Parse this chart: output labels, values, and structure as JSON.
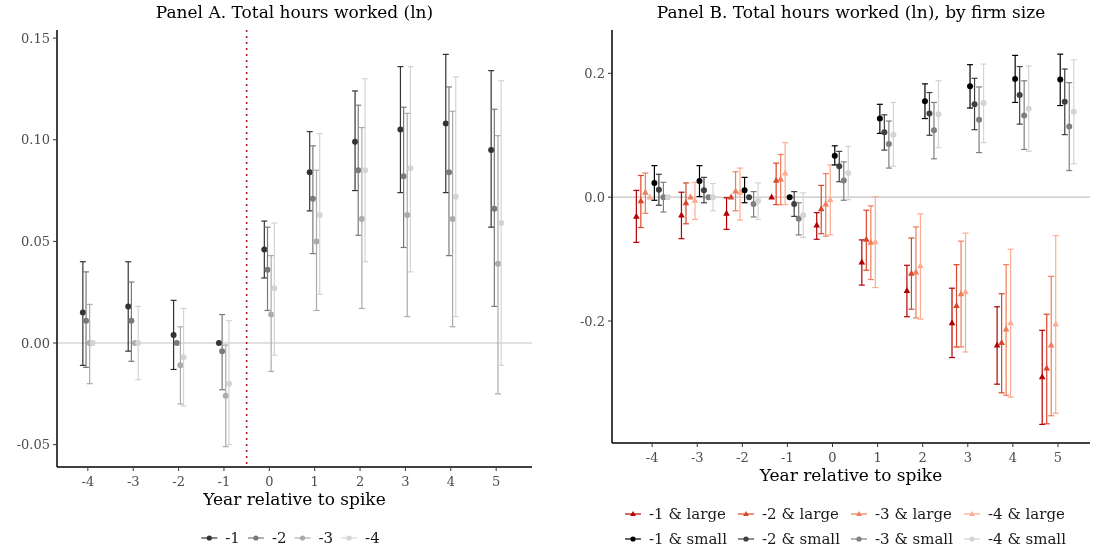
{
  "chart_data": [
    {
      "type": "scatter",
      "title": "Panel A. Total hours worked (ln)",
      "xlabel": "Year relative to spike",
      "xlim": [
        -4.68,
        5.79
      ],
      "xticks": [
        -4,
        -3,
        -2,
        -1,
        0,
        1,
        2,
        3,
        4,
        5
      ],
      "ylim": [
        -0.061,
        0.154
      ],
      "yticks": [
        {
          "value": -0.05,
          "label": "-0.05"
        },
        {
          "value": 0,
          "label": "0.00"
        },
        {
          "value": 0.05,
          "label": "0.05"
        },
        {
          "value": 0.1,
          "label": "0.10"
        },
        {
          "value": 0.15,
          "label": "0.15"
        }
      ],
      "legend": "bottom",
      "marker": "circle",
      "ref_lines": [
        {
          "axis": "y",
          "value": 0,
          "color": "#c4c4c4",
          "line_style": "solid"
        },
        {
          "axis": "x",
          "value": -0.5,
          "color": "#b2182b",
          "line_style": "dotted"
        }
      ],
      "series": [
        {
          "name": "-1",
          "color": "#333333",
          "x": [
            -4.11,
            -3.11,
            -2.11,
            -1.11,
            -0.11,
            0.89,
            1.89,
            2.89,
            3.89,
            4.89
          ],
          "values": [
            0.015,
            0.018,
            0.004,
            0,
            0.046,
            0.084,
            0.099,
            0.105,
            0.108,
            0.095
          ],
          "errors": [
            [
              -0.011,
              0.04
            ],
            [
              -0.004,
              0.04
            ],
            [
              -0.013,
              0.021
            ],
            null,
            [
              0.032,
              0.06
            ],
            [
              0.065,
              0.104
            ],
            [
              0.075,
              0.124
            ],
            [
              0.074,
              0.136
            ],
            [
              0.074,
              0.142
            ],
            [
              0.057,
              0.134
            ]
          ]
        },
        {
          "name": "-2",
          "color": "#7a7a7a",
          "x": [
            -4.04,
            -3.04,
            -2.04,
            -1.04,
            -0.04,
            0.96,
            1.96,
            2.96,
            3.96,
            4.96
          ],
          "values": [
            0.011,
            0.011,
            0,
            -0.004,
            0.036,
            0.071,
            0.085,
            0.082,
            0.084,
            0.066
          ],
          "errors": [
            [
              -0.012,
              0.035
            ],
            [
              -0.009,
              0.03
            ],
            null,
            [
              -0.023,
              0.014
            ],
            [
              0.016,
              0.057
            ],
            [
              0.044,
              0.097
            ],
            [
              0.053,
              0.117
            ],
            [
              0.047,
              0.116
            ],
            [
              0.043,
              0.126
            ],
            [
              0.018,
              0.115
            ]
          ]
        },
        {
          "name": "-3",
          "color": "#ababab",
          "x": [
            -3.96,
            -2.96,
            -1.96,
            -0.96,
            0.04,
            1.04,
            2.04,
            3.04,
            4.04,
            5.04
          ],
          "values": [
            0,
            0,
            -0.011,
            -0.026,
            0.014,
            0.05,
            0.061,
            0.063,
            0.061,
            0.039
          ],
          "errors": [
            [
              -0.02,
              0.019
            ],
            null,
            [
              -0.03,
              0.008
            ],
            [
              -0.051,
              -0.001
            ],
            [
              -0.014,
              0.043
            ],
            [
              0.016,
              0.085
            ],
            [
              0.017,
              0.106
            ],
            [
              0.013,
              0.113
            ],
            [
              0.008,
              0.114
            ],
            [
              -0.025,
              0.102
            ]
          ]
        },
        {
          "name": "-4",
          "color": "#d4d4d4",
          "x": [
            -3.89,
            -2.89,
            -1.89,
            -0.89,
            0.11,
            1.11,
            2.11,
            3.11,
            4.11,
            5.11
          ],
          "values": [
            0,
            0,
            -0.007,
            -0.02,
            0.027,
            0.063,
            0.085,
            0.086,
            0.072,
            0.059
          ],
          "errors": [
            null,
            [
              -0.018,
              0.018
            ],
            [
              -0.031,
              0.017
            ],
            [
              -0.05,
              0.011
            ],
            [
              -0.006,
              0.059
            ],
            [
              0.024,
              0.103
            ],
            [
              0.04,
              0.13
            ],
            [
              0.035,
              0.136
            ],
            [
              0.013,
              0.131
            ],
            [
              -0.011,
              0.129
            ]
          ]
        }
      ]
    },
    {
      "type": "scatter",
      "title": "Panel B. Total hours worked (ln), by firm size",
      "xlabel": "Year relative to spike",
      "xlim": [
        -4.89,
        5.71
      ],
      "xticks": [
        -4,
        -3,
        -2,
        -1,
        0,
        1,
        2,
        3,
        4,
        5
      ],
      "ylim": [
        -0.397,
        0.27
      ],
      "yticks": [
        {
          "value": -0.2,
          "label": "-0.2"
        },
        {
          "value": 0,
          "label": "0.0"
        },
        {
          "value": 0.2,
          "label": "0.2"
        }
      ],
      "legend": "bottom",
      "ref_lines": [
        {
          "axis": "y",
          "value": 0,
          "color": "#c4c4c4",
          "line_style": "solid"
        }
      ],
      "series": [
        {
          "name": "-1 & large",
          "color": "#b40000",
          "marker": "triangle",
          "x": [
            -4.35,
            -3.35,
            -2.35,
            -1.35,
            -0.35,
            0.65,
            1.65,
            2.65,
            3.65,
            4.65
          ],
          "values": [
            -0.031,
            -0.029,
            -0.026,
            0,
            -0.045,
            -0.105,
            -0.151,
            -0.203,
            -0.239,
            -0.29
          ],
          "errors": [
            [
              -0.073,
              0.011
            ],
            [
              -0.067,
              0.008
            ],
            [
              -0.052,
              -0.001
            ],
            null,
            [
              -0.068,
              -0.025
            ],
            [
              -0.142,
              -0.069
            ],
            [
              -0.193,
              -0.11
            ],
            [
              -0.259,
              -0.147
            ],
            [
              -0.302,
              -0.177
            ],
            [
              -0.367,
              -0.215
            ]
          ]
        },
        {
          "name": "-2 & large",
          "color": "#d9472b",
          "marker": "triangle",
          "x": [
            -4.25,
            -3.25,
            -2.25,
            -1.25,
            -0.25,
            0.75,
            1.75,
            2.75,
            3.75,
            4.75
          ],
          "values": [
            -0.006,
            -0.009,
            0,
            0.027,
            -0.019,
            -0.068,
            -0.123,
            -0.175,
            -0.235,
            -0.276
          ],
          "errors": [
            [
              -0.049,
              0.035
            ],
            [
              -0.043,
              0.023
            ],
            null,
            [
              -0.012,
              0.055
            ],
            [
              -0.059,
              0.019
            ],
            [
              -0.118,
              -0.021
            ],
            [
              -0.181,
              -0.066
            ],
            [
              -0.242,
              -0.109
            ],
            [
              -0.316,
              -0.156
            ],
            [
              -0.366,
              -0.189
            ]
          ]
        },
        {
          "name": "-3 & large",
          "color": "#ef7d5c",
          "marker": "triangle",
          "x": [
            -4.15,
            -3.15,
            -2.15,
            -1.15,
            -0.15,
            0.85,
            1.85,
            2.85,
            3.85,
            4.85
          ],
          "values": [
            0.008,
            0,
            0.01,
            0.029,
            -0.011,
            -0.073,
            -0.121,
            -0.156,
            -0.213,
            -0.239
          ],
          "errors": [
            [
              -0.026,
              0.039
            ],
            null,
            [
              -0.022,
              0.041
            ],
            [
              -0.012,
              0.069
            ],
            [
              -0.063,
              0.038
            ],
            [
              -0.133,
              -0.014
            ],
            [
              -0.195,
              -0.048
            ],
            [
              -0.242,
              -0.071
            ],
            [
              -0.32,
              -0.109
            ],
            [
              -0.353,
              -0.128
            ]
          ]
        },
        {
          "name": "-4 & large",
          "color": "#fcac8f",
          "marker": "triangle",
          "x": [
            -4.05,
            -3.05,
            -2.05,
            -1.05,
            -0.05,
            0.95,
            1.95,
            2.95,
            3.95,
            4.95
          ],
          "values": [
            0,
            -0.005,
            0.008,
            0.039,
            -0.004,
            -0.072,
            -0.111,
            -0.153,
            -0.203,
            -0.205
          ],
          "errors": [
            null,
            [
              -0.036,
              0.024
            ],
            [
              -0.037,
              0.047
            ],
            [
              -0.012,
              0.088
            ],
            [
              -0.061,
              0.052
            ],
            [
              -0.146,
              0.001
            ],
            [
              -0.197,
              -0.027
            ],
            [
              -0.25,
              -0.058
            ],
            [
              -0.323,
              -0.084
            ],
            [
              -0.349,
              -0.062
            ]
          ]
        },
        {
          "name": "-1 & small",
          "color": "#000000",
          "marker": "circle",
          "x": [
            -3.95,
            -2.95,
            -1.95,
            -0.95,
            0.05,
            1.05,
            2.05,
            3.05,
            4.05,
            5.05
          ],
          "values": [
            0.023,
            0.026,
            0.011,
            0,
            0.067,
            0.127,
            0.155,
            0.179,
            0.191,
            0.19
          ],
          "errors": [
            [
              -0.005,
              0.051
            ],
            [
              0.001,
              0.051
            ],
            [
              -0.009,
              0.032
            ],
            null,
            [
              0.052,
              0.083
            ],
            [
              0.103,
              0.15
            ],
            [
              0.127,
              0.183
            ],
            [
              0.144,
              0.214
            ],
            [
              0.153,
              0.229
            ],
            [
              0.148,
              0.231
            ]
          ]
        },
        {
          "name": "-2 & small",
          "color": "#3f3f3f",
          "marker": "circle",
          "x": [
            -3.85,
            -2.85,
            -1.85,
            -0.85,
            0.15,
            1.15,
            2.15,
            3.15,
            4.15,
            5.15
          ],
          "values": [
            0.012,
            0.011,
            0,
            -0.011,
            0.05,
            0.105,
            0.135,
            0.15,
            0.165,
            0.154
          ],
          "errors": [
            [
              -0.013,
              0.037
            ],
            [
              -0.009,
              0.032
            ],
            null,
            [
              -0.031,
              0.009
            ],
            [
              0.025,
              0.074
            ],
            [
              0.076,
              0.133
            ],
            [
              0.1,
              0.169
            ],
            [
              0.109,
              0.192
            ],
            [
              0.118,
              0.211
            ],
            [
              0.101,
              0.207
            ]
          ]
        },
        {
          "name": "-3 & small",
          "color": "#7f7f7f",
          "marker": "circle",
          "x": [
            -3.75,
            -2.75,
            -1.75,
            -0.75,
            0.25,
            1.25,
            2.25,
            3.25,
            4.25,
            5.25
          ],
          "values": [
            0,
            0,
            -0.011,
            -0.035,
            0.027,
            0.086,
            0.108,
            0.125,
            0.132,
            0.114
          ],
          "errors": [
            [
              -0.024,
              0.024
            ],
            null,
            [
              -0.032,
              0.009
            ],
            [
              -0.061,
              -0.009
            ],
            [
              -0.005,
              0.057
            ],
            [
              0.047,
              0.123
            ],
            [
              0.062,
              0.153
            ],
            [
              0.072,
              0.178
            ],
            [
              0.077,
              0.188
            ],
            [
              0.043,
              0.185
            ]
          ]
        },
        {
          "name": "-4 & small",
          "color": "#d4d4d4",
          "marker": "circle",
          "x": [
            -3.65,
            -2.65,
            -1.65,
            -0.65,
            0.35,
            1.35,
            2.35,
            3.35,
            4.35,
            5.35
          ],
          "values": [
            0,
            0,
            -0.006,
            -0.029,
            0.039,
            0.101,
            0.134,
            0.152,
            0.143,
            0.138
          ],
          "errors": [
            null,
            [
              -0.022,
              0.022
            ],
            [
              -0.036,
              0.023
            ],
            [
              -0.065,
              0.007
            ],
            [
              -0.004,
              0.082
            ],
            [
              0.05,
              0.153
            ],
            [
              0.08,
              0.188
            ],
            [
              0.088,
              0.215
            ],
            [
              0.074,
              0.212
            ],
            [
              0.054,
              0.222
            ]
          ]
        }
      ]
    }
  ]
}
